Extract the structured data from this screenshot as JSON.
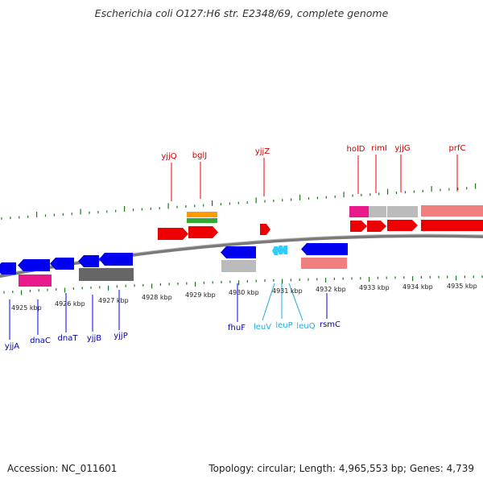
{
  "title": "Escherichia coli O127:H6 str. E2348/69, complete genome",
  "footer": {
    "accession": "Accession: NC_011601",
    "summary": "Topology: circular; Length: 4,965,553 bp; Genes: 4,739"
  },
  "colors": {
    "backbone": "#7a7a7a",
    "tick": "#1a7a1a",
    "forward_gene": "#ee0000",
    "reverse_gene": "#0000ee",
    "trna_gene": "#33ccff",
    "forward_label": "#cc0000",
    "reverse_label": "#0000aa",
    "trna_label": "#22aadd",
    "cds_light_red": "#f08080",
    "cds_gray": "#bbbbbb",
    "cds_magenta": "#e8198b",
    "cds_dark_gray": "#666666",
    "cds_orange": "#ff9900",
    "cds_green": "#33aa33"
  },
  "scale_labels": [
    "4925 kbp",
    "4926 kbp",
    "4927 kbp",
    "4928 kbp",
    "4929 kbp",
    "4930 kbp",
    "4931 kbp",
    "4932 kbp",
    "4933 kbp",
    "4934 kbp",
    "4935 kbp"
  ],
  "gene_labels": {
    "forward": [
      "yjjQ",
      "bglJ",
      "yjjZ",
      "holD",
      "rimI",
      "yjjG",
      "prfC"
    ],
    "reverse": [
      "yjjA",
      "dnaC",
      "dnaT",
      "yjjB",
      "yjjP",
      "fhuF",
      "rsmC"
    ],
    "trna": [
      "leuV",
      "leuP",
      "leuQ"
    ]
  }
}
